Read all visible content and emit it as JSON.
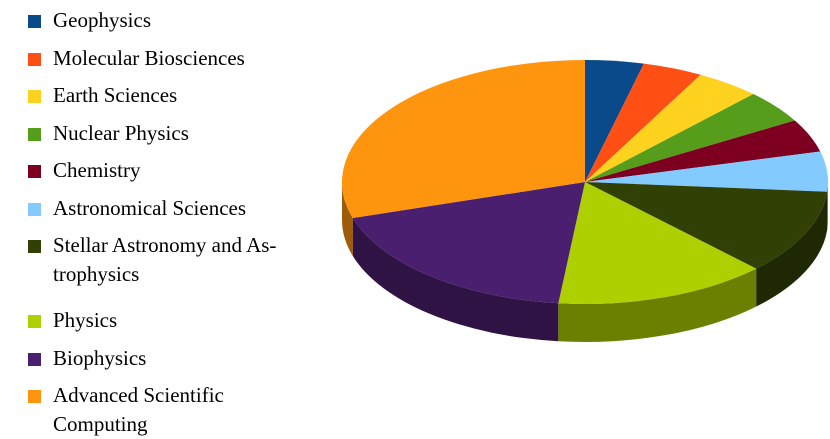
{
  "chart_data": {
    "type": "pie",
    "title": "",
    "legend_position": "left",
    "slices": [
      {
        "label": "Geophysics",
        "value": 3.9,
        "color": "#0a4a8a"
      },
      {
        "label": "Molecular Biosciences",
        "value": 4.0,
        "color": "#ff4f14"
      },
      {
        "label": "Earth Sciences",
        "value": 4.3,
        "color": "#ffd21f"
      },
      {
        "label": "Nuclear Physics",
        "value": 4.4,
        "color": "#579d1c"
      },
      {
        "label": "Chemistry",
        "value": 4.4,
        "color": "#7e0021"
      },
      {
        "label": "Astronomical Sciences",
        "value": 5.3,
        "color": "#83caff"
      },
      {
        "label": "Stellar Astronomy and Astrophysics",
        "value": 11.3,
        "color": "#314004"
      },
      {
        "label": "Physics",
        "value": 14.2,
        "color": "#aecf00"
      },
      {
        "label": "Biophysics",
        "value": 18.5,
        "color": "#4b1f6f"
      },
      {
        "label": "Advanced Scientific Computing",
        "value": 29.8,
        "color": "#ff950e"
      }
    ]
  },
  "legend": {
    "items": [
      {
        "label": "Geophysics",
        "color": "#0a4a8a"
      },
      {
        "label": "Molecular Biosciences",
        "color": "#ff4f14"
      },
      {
        "label": "Earth Sciences",
        "color": "#ffd21f"
      },
      {
        "label": "Nuclear Physics",
        "color": "#579d1c"
      },
      {
        "label": "Chemistry",
        "color": "#7e0021"
      },
      {
        "label": "Astronomical Sciences",
        "color": "#83caff"
      },
      {
        "label": "Stellar Astronomy and As-trophysics",
        "color": "#314004"
      },
      {
        "label": "Physics",
        "color": "#aecf00"
      },
      {
        "label": "Biophysics",
        "color": "#4b1f6f"
      },
      {
        "label": "Advanced Scientific Computing",
        "color": "#ff950e"
      }
    ]
  }
}
